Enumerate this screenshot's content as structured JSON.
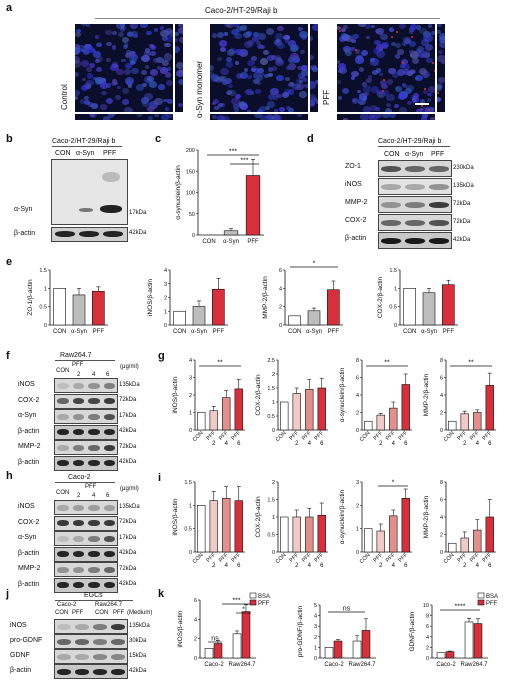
{
  "panel_letters": [
    "a",
    "b",
    "c",
    "d",
    "e",
    "f",
    "g",
    "h",
    "i",
    "j",
    "k"
  ],
  "a": {
    "title": "Caco-2/HT-29/Raji b",
    "rows": [
      "Control",
      "α-Syn monomer",
      "PFF"
    ]
  },
  "b": {
    "header": "Caco-2/HT-29/Raji b",
    "lanes": [
      "CON",
      "α-Syn",
      "PFF"
    ],
    "rows": [
      "α-Syn",
      "β-actin"
    ],
    "sizes": [
      "17kDa",
      "42kDa"
    ]
  },
  "c": {
    "ylabel": "α-synuclein/β-actin",
    "sig": [
      "***",
      "***"
    ],
    "yticks": [
      "0",
      "50",
      "100",
      "150",
      "200"
    ]
  },
  "d": {
    "header": "Caco-2/HT-29/Raji b",
    "lanes": [
      "CON",
      "α-Syn",
      "PFF"
    ],
    "rows": [
      "ZO-1",
      "iNOS",
      "MMP-2",
      "COX-2",
      "β-actin"
    ],
    "sizes": [
      "230kDa",
      "135kDa",
      "72kDa",
      "72kDa",
      "42kDa"
    ]
  },
  "e": {
    "xcats": [
      "CON",
      "α-Syn",
      "PFF"
    ],
    "sig": "*"
  },
  "f": {
    "header": "Raw264.7",
    "lanes": [
      "CON",
      "2",
      "4",
      "6"
    ],
    "pff": "PFF",
    "unit": "(μg/ml)",
    "rows": [
      "iNOS",
      "COX-2",
      "α-Syn",
      "β-actin",
      "MMP-2",
      "β-actin"
    ],
    "sizes": [
      "135kDa",
      "72kDa",
      "17kDa",
      "42kDa",
      "72kDa",
      "42kDa"
    ]
  },
  "h": {
    "header": "Caco-2",
    "lanes": [
      "CON",
      "2",
      "4",
      "6"
    ],
    "pff": "PFF",
    "unit": "(μg/ml)",
    "rows": [
      "iNOS",
      "COX-2",
      "α-Syn",
      "β-actin",
      "MMP-2",
      "β-actin"
    ],
    "sizes": [
      "135kDa",
      "72kDa",
      "17kDa",
      "42kDa",
      "72kDa",
      "42kDa"
    ]
  },
  "g": {
    "sig": [
      "**",
      "**",
      "**"
    ]
  },
  "i": {
    "sig": [
      "*"
    ]
  },
  "j": {
    "header": "EGCs",
    "groups": [
      "Caco-2",
      "Raw264.7"
    ],
    "lanes": [
      "CON",
      "PFF",
      "CON",
      "PFF"
    ],
    "medium": "(Medium)",
    "rows": [
      "iNOS",
      "pro-GDNF",
      "GDNF",
      "β-actin"
    ],
    "sizes": [
      "135kDa",
      "30kDa",
      "15kDa",
      "42kDa"
    ]
  },
  "k": {
    "legend": [
      "BSA",
      "PFF"
    ],
    "xcats": [
      "Caco-2",
      "Raw264.7"
    ],
    "sig": [
      "***",
      "*",
      "ns",
      "ns",
      "****"
    ]
  },
  "colors": {
    "red": "#d7303b",
    "grey": "#bdbdbd",
    "pink1": "#f2c9c7",
    "pink2": "#e38f8b",
    "pink3": "#d96a65"
  },
  "chart_data": [
    {
      "type": "bar",
      "panel": "c",
      "categories": [
        "CON",
        "α-Syn",
        "PFF"
      ],
      "values": [
        0,
        10,
        140
      ],
      "errors": [
        0,
        5,
        38
      ],
      "ylabel": "α-synuclein/β-actin",
      "ylim": [
        0,
        200
      ],
      "yticks": [
        0,
        50,
        100,
        150,
        200
      ]
    },
    {
      "type": "bar",
      "panel": "e1",
      "categories": [
        "CON",
        "α-Syn",
        "PFF"
      ],
      "values": [
        1.0,
        0.82,
        0.92
      ],
      "errors": [
        0,
        0.18,
        0.12
      ],
      "ylabel": "ZO-1/β-actin",
      "ylim": [
        0,
        1.5
      ],
      "yticks": [
        0,
        0.5,
        1.0,
        1.5
      ]
    },
    {
      "type": "bar",
      "panel": "e2",
      "categories": [
        "CON",
        "α-Syn",
        "PFF"
      ],
      "values": [
        1.0,
        1.35,
        2.6
      ],
      "errors": [
        0,
        0.4,
        0.8
      ],
      "ylabel": "iNOS/β-actin",
      "ylim": [
        0,
        4
      ],
      "yticks": [
        0,
        1,
        2,
        3,
        4
      ]
    },
    {
      "type": "bar",
      "panel": "e3",
      "categories": [
        "CON",
        "α-Syn",
        "PFF"
      ],
      "values": [
        1.0,
        1.55,
        3.85
      ],
      "errors": [
        0,
        0.3,
        0.95
      ],
      "ylabel": "MMP-2/β-actin",
      "ylim": [
        0,
        6
      ],
      "yticks": [
        0,
        2,
        4,
        6
      ]
    },
    {
      "type": "bar",
      "panel": "e4",
      "categories": [
        "CON",
        "α-Syn",
        "PFF"
      ],
      "values": [
        1.0,
        0.88,
        1.1
      ],
      "errors": [
        0,
        0.12,
        0.12
      ],
      "ylabel": "COX-2/β-actin",
      "ylim": [
        0,
        1.5
      ],
      "yticks": [
        0,
        0.5,
        1.0,
        1.5
      ]
    },
    {
      "type": "bar",
      "panel": "g1",
      "categories": [
        "CON",
        "2",
        "4",
        "6"
      ],
      "values": [
        1.0,
        1.1,
        1.85,
        2.35
      ],
      "errors": [
        0,
        0.25,
        0.4,
        0.55
      ],
      "ylabel": "iNOS/β-actin",
      "ylim": [
        0,
        4
      ],
      "yticks": [
        0,
        1,
        2,
        3,
        4
      ]
    },
    {
      "type": "bar",
      "panel": "g2",
      "categories": [
        "CON",
        "2",
        "4",
        "6"
      ],
      "values": [
        1.0,
        1.3,
        1.45,
        1.5
      ],
      "errors": [
        0,
        0.2,
        0.35,
        0.35
      ],
      "ylabel": "COX-2/β-actin",
      "ylim": [
        0,
        2.5
      ],
      "yticks": [
        0,
        0.5,
        1.0,
        1.5,
        2.0,
        2.5
      ]
    },
    {
      "type": "bar",
      "panel": "g3",
      "categories": [
        "CON",
        "2",
        "4",
        "6"
      ],
      "values": [
        1.0,
        1.7,
        2.5,
        5.2
      ],
      "errors": [
        0,
        0.2,
        0.7,
        1.2
      ],
      "ylabel": "α-synuclein/β-actin",
      "ylim": [
        0,
        8
      ],
      "yticks": [
        0,
        2,
        4,
        6,
        8
      ]
    },
    {
      "type": "bar",
      "panel": "g4",
      "categories": [
        "CON",
        "2",
        "4",
        "6"
      ],
      "values": [
        1.0,
        1.85,
        2.0,
        5.1
      ],
      "errors": [
        0,
        0.3,
        0.3,
        1.4
      ],
      "ylabel": "MMP-2/β-actin",
      "ylim": [
        0,
        8
      ],
      "yticks": [
        0,
        2,
        4,
        6,
        8
      ]
    },
    {
      "type": "bar",
      "panel": "i1",
      "categories": [
        "CON",
        "2",
        "4",
        "6"
      ],
      "values": [
        1.0,
        1.1,
        1.15,
        1.1
      ],
      "errors": [
        0,
        0.2,
        0.25,
        0.3
      ],
      "ylabel": "iNOS/β-actin",
      "ylim": [
        0,
        1.5
      ],
      "yticks": [
        0,
        0.5,
        1.0,
        1.5
      ]
    },
    {
      "type": "bar",
      "panel": "i2",
      "categories": [
        "CON",
        "2",
        "4",
        "6"
      ],
      "values": [
        1.0,
        1.0,
        1.0,
        1.05
      ],
      "errors": [
        0,
        0.2,
        0.25,
        0.35
      ],
      "ylabel": "COX-2/β-actin",
      "ylim": [
        0,
        2.0
      ],
      "yticks": [
        0,
        0.5,
        1.0,
        1.5,
        2.0
      ]
    },
    {
      "type": "bar",
      "panel": "i3",
      "categories": [
        "CON",
        "2",
        "4",
        "6"
      ],
      "values": [
        1.0,
        0.9,
        1.55,
        2.3
      ],
      "errors": [
        0,
        0.3,
        0.25,
        0.4
      ],
      "ylabel": "α-synuclein/β-actin",
      "ylim": [
        0,
        3
      ],
      "yticks": [
        0,
        1,
        2,
        3
      ]
    },
    {
      "type": "bar",
      "panel": "i4",
      "categories": [
        "CON",
        "2",
        "4",
        "6"
      ],
      "values": [
        1.0,
        1.6,
        2.5,
        4.0
      ],
      "errors": [
        0,
        0.7,
        1.2,
        2.0
      ],
      "ylabel": "MMP-2/β-actin",
      "ylim": [
        0,
        8
      ],
      "yticks": [
        0,
        2,
        4,
        6,
        8
      ]
    },
    {
      "type": "bar",
      "panel": "k1",
      "categories": [
        "Caco-2",
        "Raw264.7"
      ],
      "series": [
        {
          "name": "BSA",
          "values": [
            1.0,
            2.5
          ],
          "errors": [
            0,
            0.3
          ]
        },
        {
          "name": "PFF",
          "values": [
            1.5,
            4.8
          ],
          "errors": [
            0.3,
            0.7
          ]
        }
      ],
      "ylabel": "iNOS/β-actin",
      "ylim": [
        0,
        6
      ],
      "yticks": [
        0,
        2,
        4,
        6
      ]
    },
    {
      "type": "bar",
      "panel": "k2",
      "categories": [
        "Caco-2",
        "Raw264.7"
      ],
      "series": [
        {
          "name": "BSA",
          "values": [
            1.0,
            1.6
          ],
          "errors": [
            0,
            0.5
          ]
        },
        {
          "name": "PFF",
          "values": [
            1.6,
            2.6
          ],
          "errors": [
            0.15,
            1.1
          ]
        }
      ],
      "ylabel": "pro-GDNF/β-actin",
      "ylim": [
        0,
        5
      ],
      "yticks": [
        0,
        1,
        2,
        3,
        4,
        5
      ]
    },
    {
      "type": "bar",
      "panel": "k3",
      "categories": [
        "Caco-2",
        "Raw264.7"
      ],
      "series": [
        {
          "name": "BSA",
          "values": [
            1.0,
            6.8
          ],
          "errors": [
            0,
            0.7
          ]
        },
        {
          "name": "PFF",
          "values": [
            1.2,
            6.5
          ],
          "errors": [
            0.1,
            0.9
          ]
        }
      ],
      "ylabel": "GDNF/β-actin",
      "ylim": [
        0,
        10
      ],
      "yticks": [
        0,
        2,
        4,
        6,
        8,
        10
      ]
    }
  ]
}
